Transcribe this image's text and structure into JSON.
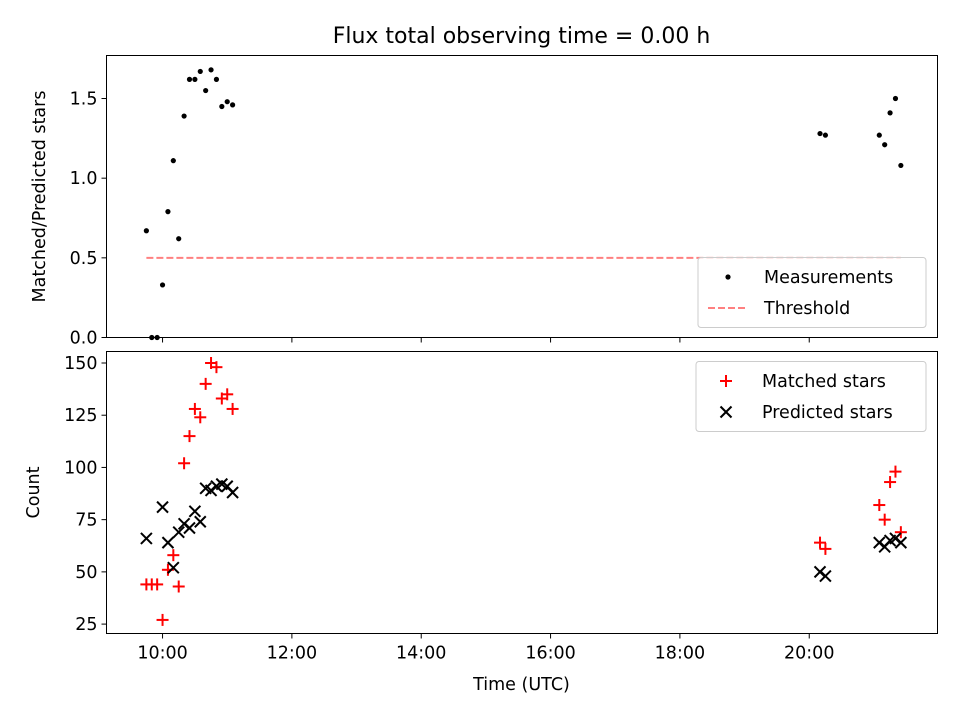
{
  "title": "Flux total observing time = 0.00 h",
  "xlabel": "Time (UTC)",
  "chart_data": [
    {
      "type": "scatter",
      "ylabel": "Matched/Predicted stars",
      "ylim": [
        0,
        1.77
      ],
      "yticks": [
        "0.0",
        "0.5",
        "1.0",
        "1.5"
      ],
      "ytick_values": [
        0,
        0.5,
        1.0,
        1.5
      ],
      "legend_position": "lower-right",
      "series": [
        {
          "name": "Measurements",
          "marker": "dot",
          "color": "#000000",
          "x": [
            "09:45",
            "09:50",
            "09:55",
            "10:00",
            "10:05",
            "10:10",
            "10:15",
            "10:20",
            "10:25",
            "10:30",
            "10:35",
            "10:40",
            "10:45",
            "10:50",
            "10:55",
            "11:00",
            "11:05",
            "20:10",
            "20:15",
            "21:05",
            "21:10",
            "21:15",
            "21:20",
            "21:25"
          ],
          "y": [
            0.67,
            0.0,
            0.0,
            0.33,
            0.79,
            1.11,
            0.62,
            1.39,
            1.62,
            1.62,
            1.67,
            1.55,
            1.68,
            1.62,
            1.45,
            1.48,
            1.46,
            1.28,
            1.27,
            1.27,
            1.21,
            1.41,
            1.5,
            1.08
          ]
        },
        {
          "name": "Threshold",
          "style": "dashed-line",
          "color": "#ff8080",
          "x": [
            "09:45",
            "21:25"
          ],
          "y": [
            0.5,
            0.5
          ]
        }
      ]
    },
    {
      "type": "scatter",
      "ylabel": "Count",
      "ylim": [
        20.5,
        155.5
      ],
      "yticks": [
        "25",
        "50",
        "75",
        "100",
        "125",
        "150"
      ],
      "ytick_values": [
        25,
        50,
        75,
        100,
        125,
        150
      ],
      "xlim": [
        "09:08",
        "21:59"
      ],
      "xticks": [
        "10:00",
        "12:00",
        "14:00",
        "16:00",
        "18:00",
        "20:00"
      ],
      "legend_position": "upper-right",
      "series": [
        {
          "name": "Matched stars",
          "marker": "plus",
          "color": "#ff0000",
          "x": [
            "09:45",
            "09:50",
            "09:55",
            "10:00",
            "10:05",
            "10:10",
            "10:15",
            "10:20",
            "10:25",
            "10:30",
            "10:35",
            "10:40",
            "10:45",
            "10:50",
            "10:55",
            "11:00",
            "11:05",
            "20:10",
            "20:15",
            "21:05",
            "21:10",
            "21:15",
            "21:20",
            "21:25"
          ],
          "y": [
            44,
            44,
            44,
            27,
            51,
            58,
            43,
            102,
            115,
            128,
            124,
            140,
            150,
            148,
            133,
            135,
            128,
            64,
            61,
            82,
            75,
            93,
            98,
            69
          ]
        },
        {
          "name": "Predicted stars",
          "marker": "x",
          "color": "#000000",
          "x": [
            "09:45",
            "10:00",
            "10:05",
            "10:10",
            "10:15",
            "10:20",
            "10:25",
            "10:30",
            "10:35",
            "10:40",
            "10:45",
            "10:50",
            "10:55",
            "11:00",
            "11:05",
            "20:10",
            "20:15",
            "21:05",
            "21:10",
            "21:15",
            "21:20",
            "21:25"
          ],
          "y": [
            66,
            81,
            64,
            52,
            69,
            73,
            71,
            79,
            74,
            90,
            89,
            91,
            92,
            91,
            88,
            50,
            48,
            64,
            62,
            65,
            66,
            64
          ]
        }
      ]
    }
  ]
}
